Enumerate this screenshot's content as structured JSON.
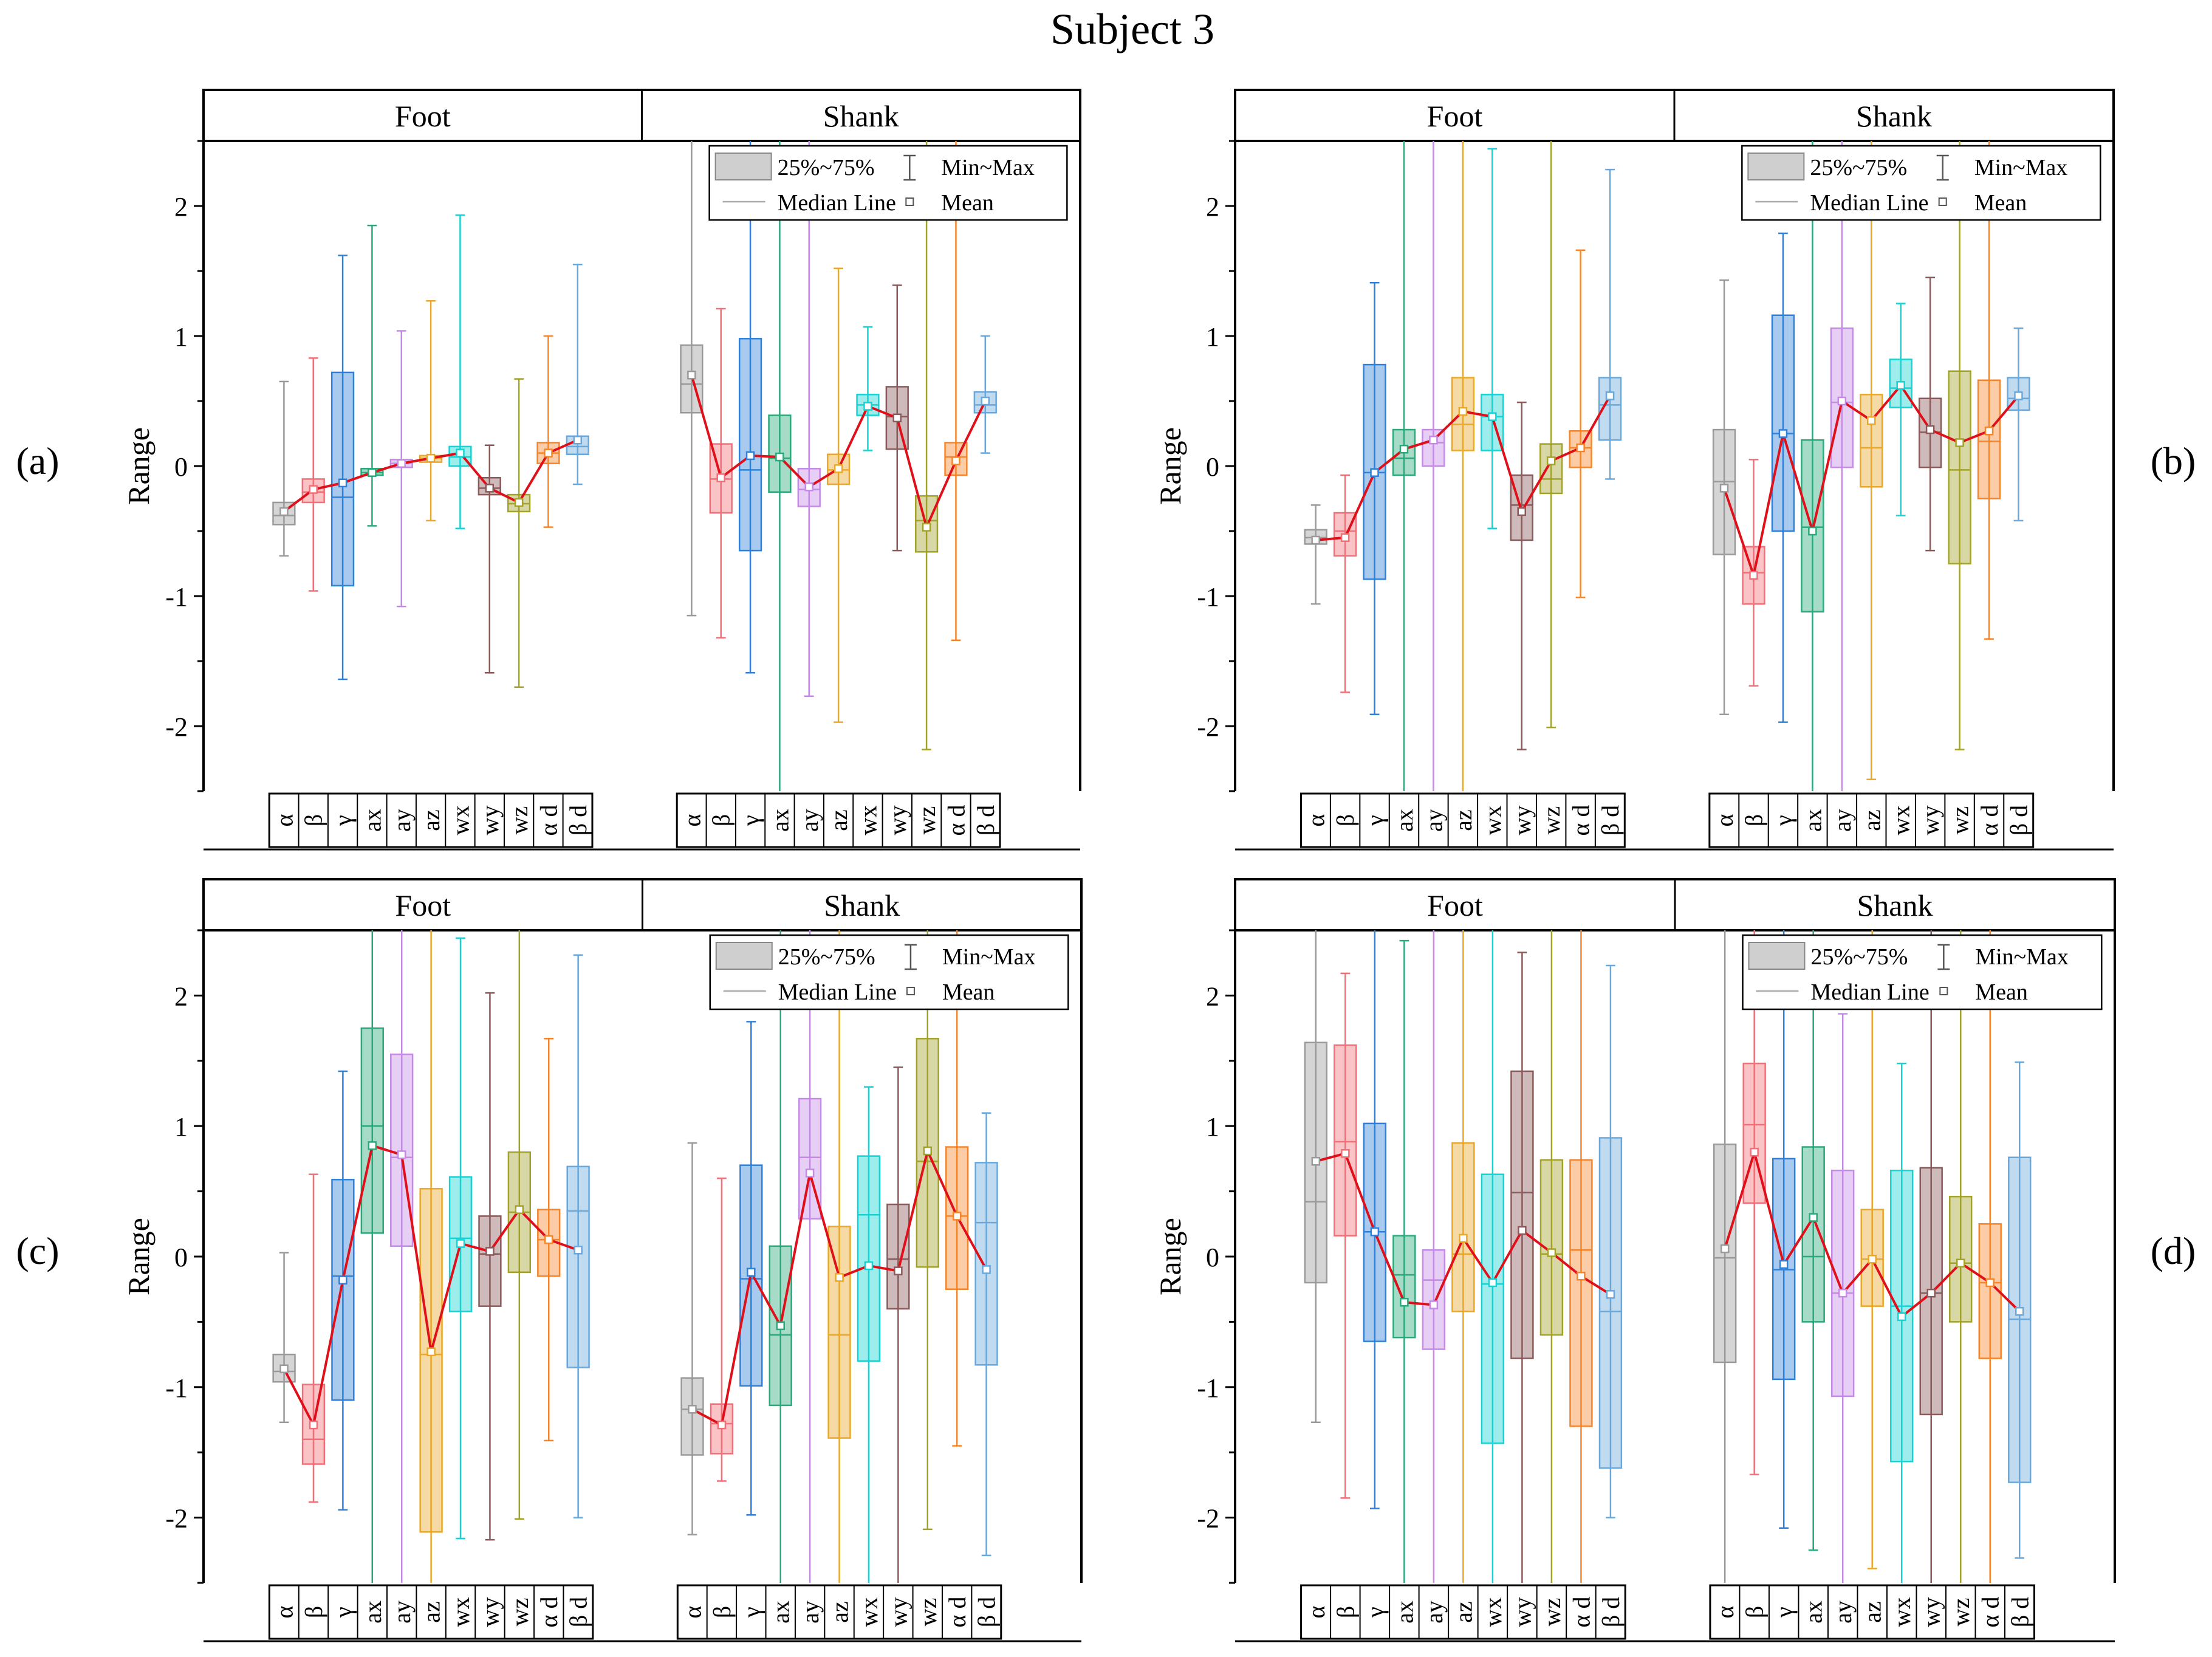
{
  "figure": {
    "title": "Subject 3"
  },
  "panel_headers": {
    "left": "Foot",
    "right": "Shank"
  },
  "legend": {
    "box": "25%~75%",
    "whisker": "Min~Max",
    "median": "Median Line",
    "mean": "Mean"
  },
  "variables": [
    "α",
    "β",
    "γ",
    "ax",
    "ay",
    "az",
    "wx",
    "wy",
    "wz",
    "α d",
    "β d"
  ],
  "colors": [
    "#9a9a9a",
    "#f36f78",
    "#2f80d8",
    "#2aa97a",
    "#c48ae6",
    "#e9a829",
    "#16d3d3",
    "#8a5a5a",
    "#a3a32a",
    "#f5852a",
    "#6aa8db"
  ],
  "mean_line_color": "#e0101a",
  "chart_data": [
    {
      "type": "box",
      "label": "(a)",
      "ylabel": "Range",
      "ylim": [
        -2.5,
        2.5
      ],
      "yticks": [
        -2,
        -1,
        0,
        1,
        2
      ],
      "legend_position": "top-right",
      "groups": [
        {
          "name": "Foot",
          "boxes": [
            {
              "q1": -0.45,
              "median": -0.38,
              "q3": -0.28,
              "mean": -0.35,
              "min": -0.69,
              "max": 0.65
            },
            {
              "q1": -0.28,
              "median": -0.2,
              "q3": -0.1,
              "mean": -0.18,
              "min": -0.96,
              "max": 0.83
            },
            {
              "q1": -0.92,
              "median": -0.24,
              "q3": 0.72,
              "mean": -0.13,
              "min": -1.64,
              "max": 1.62
            },
            {
              "q1": -0.07,
              "median": -0.05,
              "q3": -0.02,
              "mean": -0.05,
              "min": -0.46,
              "max": 1.85
            },
            {
              "q1": -0.01,
              "median": 0.02,
              "q3": 0.05,
              "mean": 0.02,
              "min": -1.08,
              "max": 1.04
            },
            {
              "q1": 0.03,
              "median": 0.06,
              "q3": 0.08,
              "mean": 0.06,
              "min": -0.42,
              "max": 1.27
            },
            {
              "q1": 0.0,
              "median": 0.07,
              "q3": 0.15,
              "mean": 0.1,
              "min": -0.48,
              "max": 1.93
            },
            {
              "q1": -0.22,
              "median": -0.17,
              "q3": -0.09,
              "mean": -0.17,
              "min": -1.59,
              "max": 0.16
            },
            {
              "q1": -0.35,
              "median": -0.29,
              "q3": -0.22,
              "mean": -0.28,
              "min": -1.7,
              "max": 0.67
            },
            {
              "q1": 0.02,
              "median": 0.1,
              "q3": 0.18,
              "mean": 0.1,
              "min": -0.47,
              "max": 1.0
            },
            {
              "q1": 0.09,
              "median": 0.15,
              "q3": 0.23,
              "mean": 0.2,
              "min": -0.14,
              "max": 1.55
            }
          ]
        },
        {
          "name": "Shank",
          "boxes": [
            {
              "q1": 0.41,
              "median": 0.63,
              "q3": 0.93,
              "mean": 0.7,
              "min": -1.15,
              "max": 2.5
            },
            {
              "q1": -0.36,
              "median": -0.1,
              "q3": 0.17,
              "mean": -0.09,
              "min": -1.32,
              "max": 1.21
            },
            {
              "q1": -0.65,
              "median": -0.03,
              "q3": 0.98,
              "mean": 0.08,
              "min": -1.59,
              "max": 2.5
            },
            {
              "q1": -0.2,
              "median": 0.06,
              "q3": 0.39,
              "mean": 0.07,
              "min": -2.5,
              "max": 2.5
            },
            {
              "q1": -0.31,
              "median": -0.18,
              "q3": -0.02,
              "mean": -0.16,
              "min": -1.77,
              "max": 2.5
            },
            {
              "q1": -0.14,
              "median": -0.03,
              "q3": 0.09,
              "mean": -0.02,
              "min": -1.97,
              "max": 1.52
            },
            {
              "q1": 0.39,
              "median": 0.47,
              "q3": 0.55,
              "mean": 0.46,
              "min": 0.12,
              "max": 1.07
            },
            {
              "q1": 0.13,
              "median": 0.38,
              "q3": 0.61,
              "mean": 0.37,
              "min": -0.65,
              "max": 1.39
            },
            {
              "q1": -0.66,
              "median": -0.42,
              "q3": -0.23,
              "mean": -0.47,
              "min": -2.18,
              "max": 2.5
            },
            {
              "q1": -0.07,
              "median": 0.07,
              "q3": 0.18,
              "mean": 0.04,
              "min": -1.34,
              "max": 2.5
            },
            {
              "q1": 0.41,
              "median": 0.47,
              "q3": 0.57,
              "mean": 0.5,
              "min": 0.1,
              "max": 1.0
            }
          ]
        }
      ]
    },
    {
      "type": "box",
      "label": "(b)",
      "ylabel": "Range",
      "ylim": [
        -2.5,
        2.5
      ],
      "yticks": [
        -2,
        -1,
        0,
        1,
        2
      ],
      "legend_position": "top-right",
      "groups": [
        {
          "name": "Foot",
          "boxes": [
            {
              "q1": -0.6,
              "median": -0.55,
              "q3": -0.49,
              "mean": -0.57,
              "min": -1.06,
              "max": -0.3
            },
            {
              "q1": -0.69,
              "median": -0.5,
              "q3": -0.36,
              "mean": -0.55,
              "min": -1.74,
              "max": -0.07
            },
            {
              "q1": -0.87,
              "median": -0.05,
              "q3": 0.78,
              "mean": -0.05,
              "min": -1.91,
              "max": 1.41
            },
            {
              "q1": -0.07,
              "median": 0.06,
              "q3": 0.28,
              "mean": 0.13,
              "min": -2.5,
              "max": 2.5
            },
            {
              "q1": 0.0,
              "median": 0.18,
              "q3": 0.28,
              "mean": 0.2,
              "min": -2.5,
              "max": 2.5
            },
            {
              "q1": 0.12,
              "median": 0.32,
              "q3": 0.68,
              "mean": 0.42,
              "min": -2.5,
              "max": 2.5
            },
            {
              "q1": 0.12,
              "median": 0.38,
              "q3": 0.55,
              "mean": 0.38,
              "min": -0.48,
              "max": 2.44
            },
            {
              "q1": -0.57,
              "median": -0.3,
              "q3": -0.07,
              "mean": -0.35,
              "min": -2.18,
              "max": 0.49
            },
            {
              "q1": -0.21,
              "median": -0.1,
              "q3": 0.17,
              "mean": 0.04,
              "min": -2.01,
              "max": 2.5
            },
            {
              "q1": -0.01,
              "median": 0.14,
              "q3": 0.27,
              "mean": 0.14,
              "min": -1.01,
              "max": 1.66
            },
            {
              "q1": 0.2,
              "median": 0.47,
              "q3": 0.68,
              "mean": 0.54,
              "min": -0.1,
              "max": 2.28
            }
          ]
        },
        {
          "name": "Shank",
          "boxes": [
            {
              "q1": -0.68,
              "median": -0.12,
              "q3": 0.28,
              "mean": -0.17,
              "min": -1.91,
              "max": 1.43
            },
            {
              "q1": -1.06,
              "median": -0.82,
              "q3": -0.62,
              "mean": -0.84,
              "min": -1.69,
              "max": 0.05
            },
            {
              "q1": -0.5,
              "median": 0.25,
              "q3": 1.16,
              "mean": 0.25,
              "min": -1.97,
              "max": 1.79
            },
            {
              "q1": -1.12,
              "median": -0.47,
              "q3": 0.2,
              "mean": -0.5,
              "min": -2.5,
              "max": 2.5
            },
            {
              "q1": -0.01,
              "median": 0.49,
              "q3": 1.06,
              "mean": 0.5,
              "min": -2.5,
              "max": 2.5
            },
            {
              "q1": -0.16,
              "median": 0.14,
              "q3": 0.55,
              "mean": 0.35,
              "min": -2.41,
              "max": 2.5
            },
            {
              "q1": 0.45,
              "median": 0.6,
              "q3": 0.82,
              "mean": 0.62,
              "min": -0.38,
              "max": 1.25
            },
            {
              "q1": -0.01,
              "median": 0.26,
              "q3": 0.52,
              "mean": 0.28,
              "min": -0.65,
              "max": 1.45
            },
            {
              "q1": -0.75,
              "median": -0.03,
              "q3": 0.73,
              "mean": 0.18,
              "min": -2.18,
              "max": 2.5
            },
            {
              "q1": -0.25,
              "median": 0.19,
              "q3": 0.66,
              "mean": 0.27,
              "min": -1.33,
              "max": 2.5
            },
            {
              "q1": 0.43,
              "median": 0.52,
              "q3": 0.68,
              "mean": 0.54,
              "min": -0.42,
              "max": 1.06
            }
          ]
        }
      ]
    },
    {
      "type": "box",
      "label": "(c)",
      "ylabel": "Range",
      "ylim": [
        -2.5,
        2.5
      ],
      "yticks": [
        -2,
        -1,
        0,
        1,
        2
      ],
      "legend_position": "top-right",
      "groups": [
        {
          "name": "Foot",
          "boxes": [
            {
              "q1": -0.96,
              "median": -0.88,
              "q3": -0.75,
              "mean": -0.86,
              "min": -1.27,
              "max": 0.03
            },
            {
              "q1": -1.59,
              "median": -1.4,
              "q3": -0.98,
              "mean": -1.29,
              "min": -1.88,
              "max": 0.63
            },
            {
              "q1": -1.1,
              "median": -0.15,
              "q3": 0.59,
              "mean": -0.18,
              "min": -1.94,
              "max": 1.42
            },
            {
              "q1": 0.18,
              "median": 1.0,
              "q3": 1.75,
              "mean": 0.85,
              "min": -2.5,
              "max": 2.5
            },
            {
              "q1": 0.08,
              "median": 0.76,
              "q3": 1.55,
              "mean": 0.78,
              "min": -2.5,
              "max": 2.5
            },
            {
              "q1": -2.11,
              "median": -0.75,
              "q3": 0.52,
              "mean": -0.73,
              "min": -2.5,
              "max": 2.5
            },
            {
              "q1": -0.42,
              "median": 0.14,
              "q3": 0.61,
              "mean": 0.1,
              "min": -2.16,
              "max": 2.44
            },
            {
              "q1": -0.38,
              "median": 0.02,
              "q3": 0.31,
              "mean": 0.04,
              "min": -2.17,
              "max": 2.02
            },
            {
              "q1": -0.12,
              "median": 0.34,
              "q3": 0.8,
              "mean": 0.36,
              "min": -2.01,
              "max": 2.5
            },
            {
              "q1": -0.15,
              "median": 0.13,
              "q3": 0.36,
              "mean": 0.13,
              "min": -1.41,
              "max": 1.67
            },
            {
              "q1": -0.85,
              "median": 0.35,
              "q3": 0.69,
              "mean": 0.05,
              "min": -2.0,
              "max": 2.31
            }
          ]
        },
        {
          "name": "Shank",
          "boxes": [
            {
              "q1": -1.52,
              "median": -1.17,
              "q3": -0.93,
              "mean": -1.17,
              "min": -2.13,
              "max": 0.87
            },
            {
              "q1": -1.51,
              "median": -1.28,
              "q3": -1.13,
              "mean": -1.29,
              "min": -1.72,
              "max": 0.6
            },
            {
              "q1": -0.99,
              "median": -0.17,
              "q3": 0.7,
              "mean": -0.12,
              "min": -1.98,
              "max": 1.8
            },
            {
              "q1": -1.14,
              "median": -0.6,
              "q3": 0.08,
              "mean": -0.53,
              "min": -2.5,
              "max": 2.5
            },
            {
              "q1": 0.29,
              "median": 0.76,
              "q3": 1.21,
              "mean": 0.64,
              "min": -2.5,
              "max": 2.5
            },
            {
              "q1": -1.39,
              "median": -0.6,
              "q3": 0.23,
              "mean": -0.16,
              "min": -2.5,
              "max": 2.5
            },
            {
              "q1": -0.8,
              "median": 0.32,
              "q3": 0.77,
              "mean": -0.07,
              "min": -2.5,
              "max": 1.3
            },
            {
              "q1": -0.4,
              "median": -0.02,
              "q3": 0.4,
              "mean": -0.11,
              "min": -2.5,
              "max": 1.45
            },
            {
              "q1": -0.08,
              "median": 0.73,
              "q3": 1.67,
              "mean": 0.81,
              "min": -2.09,
              "max": 2.5
            },
            {
              "q1": -0.25,
              "median": 0.31,
              "q3": 0.84,
              "mean": 0.31,
              "min": -1.45,
              "max": 2.5
            },
            {
              "q1": -0.83,
              "median": 0.26,
              "q3": 0.72,
              "mean": -0.1,
              "min": -2.29,
              "max": 1.1
            }
          ]
        }
      ]
    },
    {
      "type": "box",
      "label": "(d)",
      "ylabel": "Range",
      "ylim": [
        -2.5,
        2.5
      ],
      "yticks": [
        -2,
        -1,
        0,
        1,
        2
      ],
      "legend_position": "top-right",
      "groups": [
        {
          "name": "Foot",
          "boxes": [
            {
              "q1": -0.2,
              "median": 0.42,
              "q3": 1.64,
              "mean": 0.73,
              "min": -1.27,
              "max": 2.5
            },
            {
              "q1": 0.16,
              "median": 0.88,
              "q3": 1.62,
              "mean": 0.79,
              "min": -1.85,
              "max": 2.17
            },
            {
              "q1": -0.65,
              "median": 0.19,
              "q3": 1.02,
              "mean": 0.19,
              "min": -1.93,
              "max": 2.5
            },
            {
              "q1": -0.62,
              "median": -0.14,
              "q3": 0.16,
              "mean": -0.35,
              "min": -2.5,
              "max": 2.42
            },
            {
              "q1": -0.71,
              "median": -0.18,
              "q3": 0.05,
              "mean": -0.37,
              "min": -2.5,
              "max": 2.5
            },
            {
              "q1": -0.42,
              "median": 0.02,
              "q3": 0.87,
              "mean": 0.14,
              "min": -2.5,
              "max": 2.5
            },
            {
              "q1": -1.43,
              "median": -0.21,
              "q3": 0.63,
              "mean": -0.2,
              "min": -2.5,
              "max": 2.5
            },
            {
              "q1": -0.78,
              "median": 0.49,
              "q3": 1.42,
              "mean": 0.2,
              "min": -2.5,
              "max": 2.33
            },
            {
              "q1": -0.6,
              "median": 0.02,
              "q3": 0.74,
              "mean": 0.03,
              "min": -2.5,
              "max": 2.5
            },
            {
              "q1": -1.3,
              "median": 0.05,
              "q3": 0.74,
              "mean": -0.15,
              "min": -2.5,
              "max": 2.5
            },
            {
              "q1": -1.62,
              "median": -0.42,
              "q3": 0.91,
              "mean": -0.29,
              "min": -2.0,
              "max": 2.23
            }
          ]
        },
        {
          "name": "Shank",
          "boxes": [
            {
              "q1": -0.81,
              "median": -0.01,
              "q3": 0.86,
              "mean": 0.06,
              "min": -2.5,
              "max": 2.5
            },
            {
              "q1": 0.41,
              "median": 1.01,
              "q3": 1.48,
              "mean": 0.8,
              "min": -1.67,
              "max": 2.5
            },
            {
              "q1": -0.94,
              "median": -0.1,
              "q3": 0.75,
              "mean": -0.06,
              "min": -2.08,
              "max": 2.5
            },
            {
              "q1": -0.5,
              "median": 0.0,
              "q3": 0.84,
              "mean": 0.3,
              "min": -2.25,
              "max": 2.5
            },
            {
              "q1": -1.07,
              "median": -0.28,
              "q3": 0.66,
              "mean": -0.28,
              "min": -2.5,
              "max": 1.86
            },
            {
              "q1": -0.38,
              "median": -0.02,
              "q3": 0.36,
              "mean": -0.02,
              "min": -2.39,
              "max": 2.5
            },
            {
              "q1": -1.57,
              "median": -0.38,
              "q3": 0.66,
              "mean": -0.46,
              "min": -2.5,
              "max": 1.48
            },
            {
              "q1": -1.21,
              "median": -0.28,
              "q3": 0.68,
              "mean": -0.28,
              "min": -2.5,
              "max": 2.5
            },
            {
              "q1": -0.5,
              "median": -0.05,
              "q3": 0.46,
              "mean": -0.05,
              "min": -2.5,
              "max": 2.5
            },
            {
              "q1": -0.78,
              "median": -0.2,
              "q3": 0.25,
              "mean": -0.2,
              "min": -2.5,
              "max": 2.5
            },
            {
              "q1": -1.73,
              "median": -0.48,
              "q3": 0.76,
              "mean": -0.42,
              "min": -2.31,
              "max": 1.49
            }
          ]
        }
      ]
    }
  ]
}
